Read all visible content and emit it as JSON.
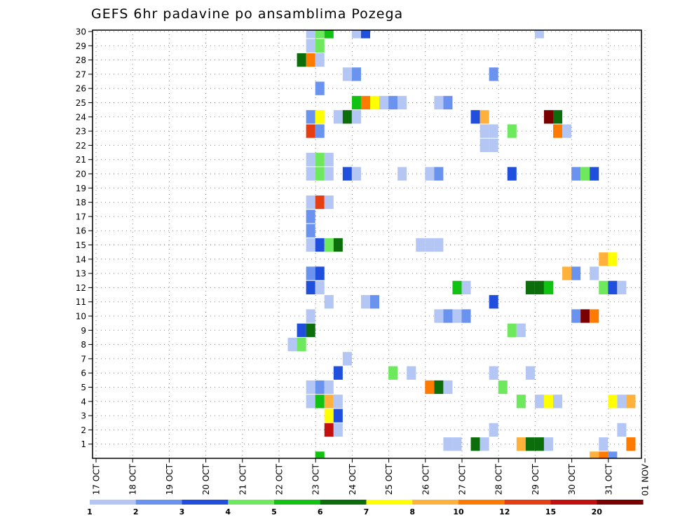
{
  "chart_data": {
    "type": "heatmap",
    "title": "GEFS 6hr padavine po ansamblima Pozega",
    "ylim": [
      0,
      30
    ],
    "y_ticks": [
      1,
      2,
      3,
      4,
      5,
      6,
      7,
      8,
      9,
      10,
      11,
      12,
      13,
      14,
      15,
      16,
      17,
      18,
      19,
      20,
      21,
      22,
      23,
      24,
      25,
      26,
      27,
      28,
      29,
      30
    ],
    "x_ticks": [
      "17 OCT",
      "18 OCT",
      "19 OCT",
      "20 OCT",
      "21 OCT",
      "22 OCT",
      "23 OCT",
      "24 OCT",
      "25 OCT",
      "26 OCT",
      "27 OCT",
      "28 OCT",
      "29 OCT",
      "30 OCT",
      "31 OCT",
      "01 NOV"
    ],
    "grid": true,
    "time_step": "6hr",
    "colorbar": {
      "labels": [
        "1",
        "2",
        "3",
        "4",
        "5",
        "6",
        "7",
        "8",
        "10",
        "12",
        "15",
        "20"
      ],
      "colors": [
        "#b3c6f4",
        "#6a93ef",
        "#1f4fdc",
        "#6ee85c",
        "#12c212",
        "#0b6e0b",
        "#ffff00",
        "#ffb13b",
        "#ff7a00",
        "#e63e12",
        "#c40f0f",
        "#7a0000"
      ]
    },
    "cells": [
      {
        "member": 30,
        "step": 24,
        "level": 1
      },
      {
        "member": 30,
        "step": 25,
        "level": 4
      },
      {
        "member": 30,
        "step": 26,
        "level": 5
      },
      {
        "member": 30,
        "step": 29,
        "level": 1
      },
      {
        "member": 30,
        "step": 30,
        "level": 3
      },
      {
        "member": 30,
        "step": 49,
        "level": 1
      },
      {
        "member": 29,
        "step": 24,
        "level": 1
      },
      {
        "member": 29,
        "step": 25,
        "level": 4
      },
      {
        "member": 28,
        "step": 23,
        "level": 6
      },
      {
        "member": 28,
        "step": 24,
        "level": 9
      },
      {
        "member": 28,
        "step": 25,
        "level": 1
      },
      {
        "member": 27,
        "step": 28,
        "level": 1
      },
      {
        "member": 27,
        "step": 29,
        "level": 2
      },
      {
        "member": 27,
        "step": 44,
        "level": 2
      },
      {
        "member": 26,
        "step": 25,
        "level": 2
      },
      {
        "member": 25,
        "step": 29,
        "level": 5
      },
      {
        "member": 25,
        "step": 30,
        "level": 9
      },
      {
        "member": 25,
        "step": 31,
        "level": 7
      },
      {
        "member": 25,
        "step": 32,
        "level": 1
      },
      {
        "member": 25,
        "step": 33,
        "level": 2
      },
      {
        "member": 25,
        "step": 34,
        "level": 1
      },
      {
        "member": 25,
        "step": 38,
        "level": 1
      },
      {
        "member": 25,
        "step": 39,
        "level": 2
      },
      {
        "member": 24,
        "step": 24,
        "level": 2
      },
      {
        "member": 24,
        "step": 25,
        "level": 7
      },
      {
        "member": 24,
        "step": 27,
        "level": 1
      },
      {
        "member": 24,
        "step": 28,
        "level": 6
      },
      {
        "member": 24,
        "step": 29,
        "level": 1
      },
      {
        "member": 24,
        "step": 42,
        "level": 3
      },
      {
        "member": 24,
        "step": 43,
        "level": 8
      },
      {
        "member": 24,
        "step": 50,
        "level": 12
      },
      {
        "member": 24,
        "step": 51,
        "level": 6
      },
      {
        "member": 23,
        "step": 24,
        "level": 10
      },
      {
        "member": 23,
        "step": 25,
        "level": 2
      },
      {
        "member": 23,
        "step": 43,
        "level": 1
      },
      {
        "member": 23,
        "step": 44,
        "level": 1
      },
      {
        "member": 23,
        "step": 46,
        "level": 4
      },
      {
        "member": 23,
        "step": 51,
        "level": 9
      },
      {
        "member": 23,
        "step": 52,
        "level": 1
      },
      {
        "member": 22,
        "step": 43,
        "level": 1
      },
      {
        "member": 22,
        "step": 44,
        "level": 1
      },
      {
        "member": 21,
        "step": 24,
        "level": 1
      },
      {
        "member": 21,
        "step": 25,
        "level": 4
      },
      {
        "member": 21,
        "step": 26,
        "level": 1
      },
      {
        "member": 20,
        "step": 24,
        "level": 1
      },
      {
        "member": 20,
        "step": 25,
        "level": 4
      },
      {
        "member": 20,
        "step": 26,
        "level": 1
      },
      {
        "member": 20,
        "step": 28,
        "level": 3
      },
      {
        "member": 20,
        "step": 29,
        "level": 1
      },
      {
        "member": 20,
        "step": 34,
        "level": 1
      },
      {
        "member": 20,
        "step": 37,
        "level": 1
      },
      {
        "member": 20,
        "step": 38,
        "level": 2
      },
      {
        "member": 20,
        "step": 46,
        "level": 3
      },
      {
        "member": 20,
        "step": 53,
        "level": 2
      },
      {
        "member": 20,
        "step": 54,
        "level": 4
      },
      {
        "member": 20,
        "step": 55,
        "level": 3
      },
      {
        "member": 18,
        "step": 24,
        "level": 1
      },
      {
        "member": 18,
        "step": 25,
        "level": 10
      },
      {
        "member": 18,
        "step": 26,
        "level": 1
      },
      {
        "member": 17,
        "step": 24,
        "level": 2
      },
      {
        "member": 16,
        "step": 24,
        "level": 2
      },
      {
        "member": 15,
        "step": 24,
        "level": 1
      },
      {
        "member": 15,
        "step": 25,
        "level": 3
      },
      {
        "member": 15,
        "step": 26,
        "level": 4
      },
      {
        "member": 15,
        "step": 27,
        "level": 6
      },
      {
        "member": 15,
        "step": 36,
        "level": 1
      },
      {
        "member": 15,
        "step": 37,
        "level": 1
      },
      {
        "member": 15,
        "step": 38,
        "level": 1
      },
      {
        "member": 14,
        "step": 56,
        "level": 8
      },
      {
        "member": 14,
        "step": 57,
        "level": 7
      },
      {
        "member": 13,
        "step": 24,
        "level": 2
      },
      {
        "member": 13,
        "step": 25,
        "level": 3
      },
      {
        "member": 13,
        "step": 52,
        "level": 8
      },
      {
        "member": 13,
        "step": 53,
        "level": 2
      },
      {
        "member": 13,
        "step": 55,
        "level": 1
      },
      {
        "member": 12,
        "step": 24,
        "level": 3
      },
      {
        "member": 12,
        "step": 25,
        "level": 1
      },
      {
        "member": 12,
        "step": 40,
        "level": 5
      },
      {
        "member": 12,
        "step": 41,
        "level": 1
      },
      {
        "member": 12,
        "step": 48,
        "level": 6
      },
      {
        "member": 12,
        "step": 49,
        "level": 6
      },
      {
        "member": 12,
        "step": 50,
        "level": 5
      },
      {
        "member": 12,
        "step": 56,
        "level": 4
      },
      {
        "member": 12,
        "step": 57,
        "level": 3
      },
      {
        "member": 12,
        "step": 58,
        "level": 1
      },
      {
        "member": 11,
        "step": 26,
        "level": 1
      },
      {
        "member": 11,
        "step": 30,
        "level": 1
      },
      {
        "member": 11,
        "step": 31,
        "level": 2
      },
      {
        "member": 11,
        "step": 44,
        "level": 3
      },
      {
        "member": 10,
        "step": 24,
        "level": 1
      },
      {
        "member": 10,
        "step": 38,
        "level": 1
      },
      {
        "member": 10,
        "step": 39,
        "level": 2
      },
      {
        "member": 10,
        "step": 40,
        "level": 1
      },
      {
        "member": 10,
        "step": 41,
        "level": 2
      },
      {
        "member": 10,
        "step": 53,
        "level": 2
      },
      {
        "member": 10,
        "step": 54,
        "level": 12
      },
      {
        "member": 10,
        "step": 55,
        "level": 9
      },
      {
        "member": 9,
        "step": 23,
        "level": 3
      },
      {
        "member": 9,
        "step": 24,
        "level": 6
      },
      {
        "member": 9,
        "step": 46,
        "level": 4
      },
      {
        "member": 9,
        "step": 47,
        "level": 1
      },
      {
        "member": 8,
        "step": 22,
        "level": 1
      },
      {
        "member": 8,
        "step": 23,
        "level": 4
      },
      {
        "member": 7,
        "step": 28,
        "level": 1
      },
      {
        "member": 6,
        "step": 27,
        "level": 3
      },
      {
        "member": 6,
        "step": 33,
        "level": 4
      },
      {
        "member": 6,
        "step": 35,
        "level": 1
      },
      {
        "member": 6,
        "step": 44,
        "level": 1
      },
      {
        "member": 6,
        "step": 48,
        "level": 1
      },
      {
        "member": 5,
        "step": 24,
        "level": 1
      },
      {
        "member": 5,
        "step": 25,
        "level": 2
      },
      {
        "member": 5,
        "step": 26,
        "level": 1
      },
      {
        "member": 5,
        "step": 37,
        "level": 9
      },
      {
        "member": 5,
        "step": 38,
        "level": 6
      },
      {
        "member": 5,
        "step": 39,
        "level": 1
      },
      {
        "member": 5,
        "step": 45,
        "level": 4
      },
      {
        "member": 4,
        "step": 24,
        "level": 1
      },
      {
        "member": 4,
        "step": 25,
        "level": 5
      },
      {
        "member": 4,
        "step": 26,
        "level": 8
      },
      {
        "member": 4,
        "step": 27,
        "level": 1
      },
      {
        "member": 4,
        "step": 47,
        "level": 4
      },
      {
        "member": 4,
        "step": 49,
        "level": 1
      },
      {
        "member": 4,
        "step": 50,
        "level": 7
      },
      {
        "member": 4,
        "step": 51,
        "level": 1
      },
      {
        "member": 4,
        "step": 57,
        "level": 7
      },
      {
        "member": 4,
        "step": 58,
        "level": 1
      },
      {
        "member": 4,
        "step": 59,
        "level": 8
      },
      {
        "member": 3,
        "step": 26,
        "level": 7
      },
      {
        "member": 3,
        "step": 27,
        "level": 3
      },
      {
        "member": 2,
        "step": 26,
        "level": 11
      },
      {
        "member": 2,
        "step": 27,
        "level": 1
      },
      {
        "member": 2,
        "step": 44,
        "level": 1
      },
      {
        "member": 2,
        "step": 58,
        "level": 1
      },
      {
        "member": 1,
        "step": 39,
        "level": 1
      },
      {
        "member": 1,
        "step": 40,
        "level": 1
      },
      {
        "member": 1,
        "step": 42,
        "level": 6
      },
      {
        "member": 1,
        "step": 43,
        "level": 1
      },
      {
        "member": 1,
        "step": 47,
        "level": 8
      },
      {
        "member": 1,
        "step": 48,
        "level": 6
      },
      {
        "member": 1,
        "step": 49,
        "level": 6
      },
      {
        "member": 1,
        "step": 50,
        "level": 1
      },
      {
        "member": 1,
        "step": 56,
        "level": 1
      },
      {
        "member": 1,
        "step": 59,
        "level": 9
      },
      {
        "member": 0,
        "step": 25,
        "level": 5
      },
      {
        "member": 0,
        "step": 55,
        "level": 8
      },
      {
        "member": 0,
        "step": 56,
        "level": 9
      },
      {
        "member": 0,
        "step": 57,
        "level": 2
      }
    ]
  }
}
